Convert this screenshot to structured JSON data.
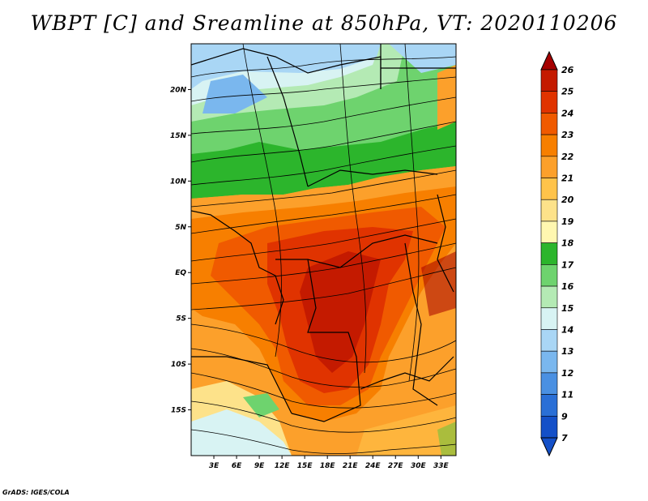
{
  "title": "WBPT [C] and Sreamline at 850hPa, VT: 2020110206",
  "credit": "GrADS: IGES/COLA",
  "map": {
    "lat_labels": [
      "20N",
      "15N",
      "10N",
      "5N",
      "EQ",
      "5S",
      "10S",
      "15S"
    ],
    "lat_values": [
      20,
      15,
      10,
      5,
      0,
      -5,
      -10,
      -15
    ],
    "lon_labels": [
      "3E",
      "6E",
      "9E",
      "12E",
      "15E",
      "18E",
      "21E",
      "24E",
      "27E",
      "30E",
      "33E"
    ],
    "lon_values": [
      3,
      6,
      9,
      12,
      15,
      18,
      21,
      24,
      27,
      30,
      33
    ],
    "lat_range": [
      -20,
      25
    ],
    "lon_range": [
      0,
      35
    ]
  },
  "colorbar": {
    "levels": [
      "26",
      "25",
      "24",
      "23",
      "22",
      "21",
      "20",
      "19",
      "18",
      "17",
      "16",
      "15",
      "14",
      "13",
      "12",
      "11",
      "9",
      "7"
    ],
    "colors": [
      "#a50000",
      "#c41a00",
      "#e03300",
      "#f05a00",
      "#f77f00",
      "#fca02b",
      "#ffc34a",
      "#fde28a",
      "#fff7b0",
      "#2cb52c",
      "#6ed36e",
      "#b4eab4",
      "#d8f3f3",
      "#a9d6f5",
      "#7ab7ee",
      "#4a90e2",
      "#2a6fd6",
      "#1450c8"
    ]
  }
}
